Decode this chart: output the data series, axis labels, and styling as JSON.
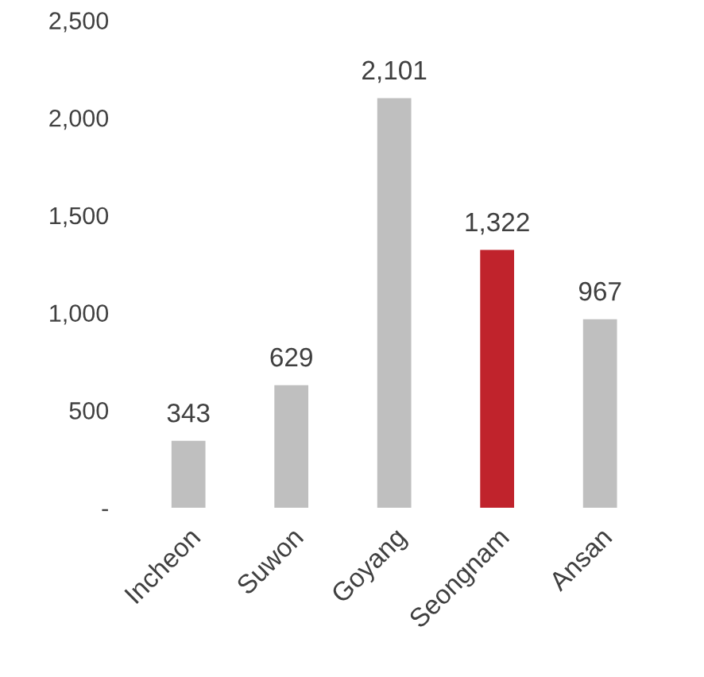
{
  "chart_data": {
    "type": "bar",
    "categories": [
      "Incheon",
      "Suwon",
      "Goyang",
      "Seongnam",
      "Ansan"
    ],
    "values": [
      343,
      629,
      2101,
      1322,
      967
    ],
    "colors": [
      "#bfbfbf",
      "#bfbfbf",
      "#bfbfbf",
      "#c0232c",
      "#bfbfbf"
    ],
    "value_labels": [
      "343",
      "629",
      "2,101",
      "1,322",
      "967"
    ],
    "ylim": [
      0,
      2500
    ],
    "yticks": [
      {
        "value": 0,
        "label": "-"
      },
      500,
      {
        "value": 1000,
        "label": "1,000"
      },
      {
        "value": 1500,
        "label": "1,500"
      },
      {
        "value": 2000,
        "label": "2,000"
      },
      {
        "value": 2500,
        "label": "2,500"
      }
    ],
    "grid": false,
    "legend": false
  }
}
